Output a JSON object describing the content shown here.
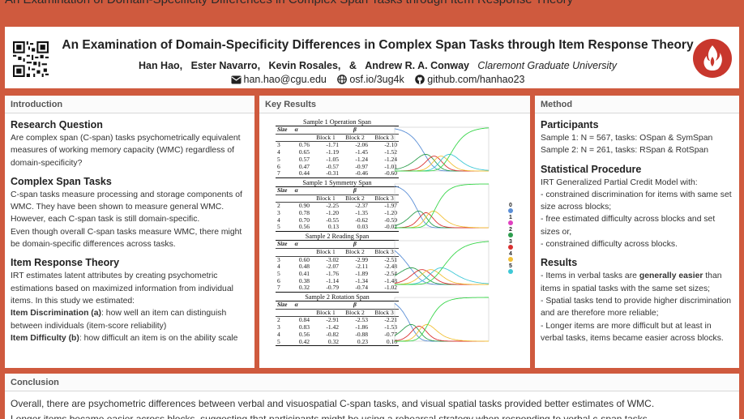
{
  "top_title_cutoff": "An Examination of Domain-Specificity Differences in Complex Span Tasks through Item Response Theory",
  "header": {
    "title": "An Examination of Domain-Specificity Differences in Complex Span Tasks through Item Response Theory",
    "authors": [
      "Han Hao,",
      "Ester Navarro,",
      "Kevin Rosales,",
      "&",
      "Andrew R. A. Conway"
    ],
    "affiliation": "Claremont Graduate University",
    "email": "han.hao@cgu.edu",
    "website": "osf.io/3ug4k",
    "github": "github.com/hanhao23",
    "icons": {
      "email": "envelope-icon",
      "website": "globe-icon",
      "github": "github-icon",
      "qr": "qr-code-icon",
      "logo": "flame-logo-icon"
    },
    "logo_color": "#c8372d"
  },
  "intro": {
    "heading": "Introduction",
    "rq_title": "Research Question",
    "rq_text": "Are complex span (C-span) tasks psychometrically equivalent measures of working memory capacity (WMC) regardless of domain-specificity?",
    "cst_title": "Complex Span Tasks",
    "cst_text1": "C-span tasks measure processing and storage components of WMC. They have been shown to measure general WMC. However, each C-span task is still domain-specific.",
    "cst_text2": "Even though overall C-span tasks measure WMC, there might be domain-specific differences across tasks.",
    "irt_title": "Item Response Theory",
    "irt_text": "IRT estimates latent attributes by creating psychometric estimations based on maximized information from individual items. In this study we estimated:",
    "disc_label": "Item Discrimination (a)",
    "disc_text": ": how well an item can distinguish between individuals (item-score reliability)",
    "diff_label": "Item Difficulty (b)",
    "diff_text": ": how difficult an item is on the ability scale"
  },
  "results": {
    "heading": "Key Results",
    "col_headers": [
      "Size",
      "α",
      "β"
    ],
    "block_headers": [
      "Block 1",
      "Block 2",
      "Block 3"
    ],
    "tables": [
      {
        "caption": "Sample 1 Operation Span",
        "rows": [
          [
            "3",
            "0.76",
            "-1.71",
            "-2.06",
            "-2.10"
          ],
          [
            "4",
            "0.65",
            "-1.19",
            "-1.45",
            "-1.52"
          ],
          [
            "5",
            "0.57",
            "-1.05",
            "-1.24",
            "-1.24"
          ],
          [
            "6",
            "0.47",
            "-0.57",
            "-0.97",
            "-1.01"
          ],
          [
            "7",
            "0.44",
            "-0.31",
            "-0.46",
            "-0.60"
          ]
        ]
      },
      {
        "caption": "Sample 1 Symmetry Span",
        "rows": [
          [
            "2",
            "0.90",
            "-2.25",
            "-2.37",
            "-1.97"
          ],
          [
            "3",
            "0.78",
            "-1.20",
            "-1.35",
            "-1.20"
          ],
          [
            "4",
            "0.70",
            "-0.55",
            "-0.62",
            "-0.59"
          ],
          [
            "5",
            "0.56",
            "0.13",
            "0.03",
            "-0.02"
          ]
        ]
      },
      {
        "caption": "Sample 2 Reading Span",
        "rows": [
          [
            "3",
            "0.60",
            "-3.02",
            "-2.99",
            "-2.51"
          ],
          [
            "4",
            "0.48",
            "-2.07",
            "-2.11",
            "-2.48"
          ],
          [
            "5",
            "0.41",
            "-1.76",
            "-1.89",
            "-2.54"
          ],
          [
            "6",
            "0.38",
            "-1.14",
            "-1.34",
            "-1.48"
          ],
          [
            "7",
            "0.32",
            "-0.79",
            "-0.74",
            "-1.02"
          ]
        ]
      },
      {
        "caption": "Sample 2 Rotation Span",
        "rows": [
          [
            "2",
            "0.84",
            "-2.91",
            "-2.53",
            "-2.21"
          ],
          [
            "3",
            "0.83",
            "-1.42",
            "-1.86",
            "-1.53"
          ],
          [
            "4",
            "0.56",
            "-0.82",
            "-0.88",
            "-0.77"
          ],
          [
            "5",
            "0.42",
            "0.32",
            "0.23",
            "0.16"
          ]
        ]
      }
    ],
    "legend": [
      {
        "label": "0",
        "color": "#5b8fd6"
      },
      {
        "label": "1",
        "color": "#e040c0"
      },
      {
        "label": "2",
        "color": "#2e9e4e"
      },
      {
        "label": "3",
        "color": "#d93030"
      },
      {
        "label": "4",
        "color": "#f2c037"
      },
      {
        "label": "5",
        "color": "#3ec8d6"
      }
    ]
  },
  "method": {
    "heading": "Method",
    "participants_title": "Participants",
    "sample1": "Sample 1: N = 567, tasks: OSpan & SymSpan",
    "sample2": "Sample 2: N = 261, tasks: RSpan & RotSpan",
    "stat_title": "Statistical Procedure",
    "stat_intro": "IRT Generalized Partial Credit Model with:",
    "stat_items": [
      "- constrained discrimination for items with same set size across blocks;",
      "- free estimated difficulty across blocks and set sizes or,",
      "- constrained difficulty across blocks."
    ],
    "results_title": "Results",
    "res1_a": "- Items in verbal tasks are ",
    "res1_b": "generally easier",
    "res1_c": " than items in spatial tasks with the same set sizes;",
    "res2": "- Spatial tasks tend to provide higher discrimination and are therefore more reliable;",
    "res3": "- Longer items are more difficult but at least in verbal tasks, items became easier across blocks."
  },
  "conclusion": {
    "heading": "Conclusion",
    "line1": "Overall, there are psychometric differences between verbal and visuospatial C-span tasks, and visual spatial tasks provided better estimates of WMC.",
    "line2": "Longer items became easier across blocks, suggesting that participants might be using a rehearsal strategy when responding to verbal c-span tasks."
  }
}
